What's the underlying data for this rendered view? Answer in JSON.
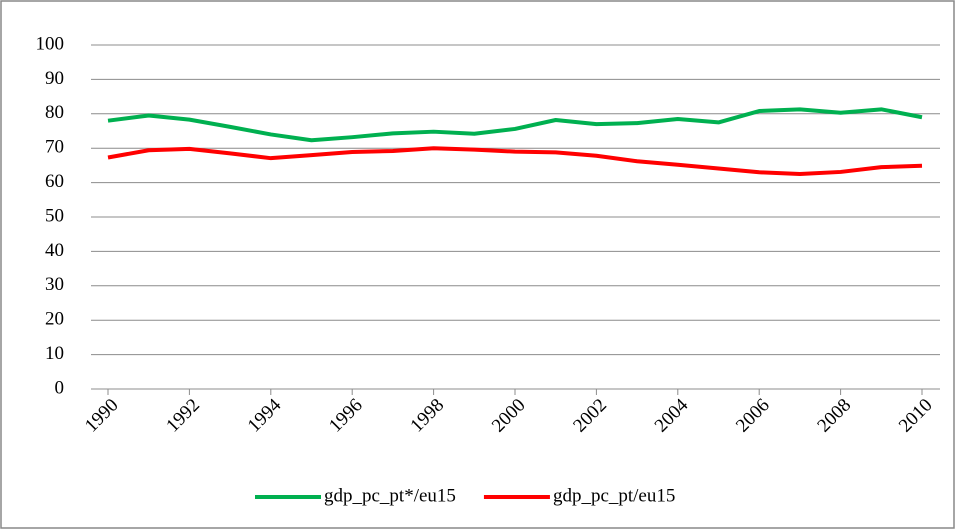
{
  "chart_data": {
    "type": "line",
    "x": [
      1990,
      1991,
      1992,
      1993,
      1994,
      1995,
      1996,
      1997,
      1998,
      1999,
      2000,
      2001,
      2002,
      2003,
      2004,
      2005,
      2006,
      2007,
      2008,
      2009,
      2010
    ],
    "series": [
      {
        "name": "gdp_pc_pt*/eu15",
        "color": "#00b050",
        "values": [
          78,
          79.5,
          78.3,
          76.2,
          74,
          72.3,
          73.2,
          74.3,
          74.8,
          74.2,
          75.6,
          78.2,
          77,
          77.3,
          78.5,
          77.5,
          80.8,
          81.3,
          80.3,
          81.3,
          79
        ]
      },
      {
        "name": "gdp_pc_pt/eu15",
        "color": "#ff0000",
        "values": [
          67.3,
          69.4,
          69.8,
          68.5,
          67.1,
          68,
          68.9,
          69.2,
          70,
          69.6,
          69,
          68.8,
          67.8,
          66.2,
          65.2,
          64.1,
          63,
          62.5,
          63.1,
          64.5,
          64.9
        ]
      }
    ],
    "xlim": [
      1990,
      2010
    ],
    "xticks": [
      1990,
      1992,
      1994,
      1996,
      1998,
      2000,
      2002,
      2004,
      2006,
      2008,
      2010
    ],
    "ylim": [
      0,
      100
    ],
    "yticks": [
      0,
      10,
      20,
      30,
      40,
      50,
      60,
      70,
      80,
      90,
      100
    ],
    "grid": true,
    "legend": "bottom"
  }
}
